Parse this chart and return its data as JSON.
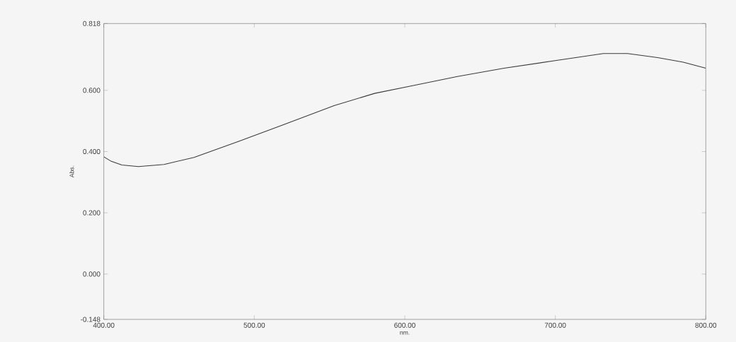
{
  "chart_data": {
    "type": "line",
    "xlabel": "nm.",
    "ylabel": "Abs.",
    "x": [
      400,
      405,
      412,
      423,
      440,
      460,
      490,
      520,
      553,
      580,
      604,
      635,
      666,
      700,
      732,
      748,
      768,
      785,
      800
    ],
    "values": [
      0.383,
      0.368,
      0.356,
      0.351,
      0.358,
      0.381,
      0.434,
      0.489,
      0.55,
      0.59,
      0.614,
      0.645,
      0.672,
      0.697,
      0.72,
      0.72,
      0.707,
      0.692,
      0.672
    ],
    "color": "#3a3a3a",
    "xlim": [
      400,
      800
    ],
    "ylim": [
      -0.148,
      0.818
    ],
    "xticks": [
      {
        "value": 400,
        "label": "400.00"
      },
      {
        "value": 500,
        "label": "500.00"
      },
      {
        "value": 600,
        "label": "600.00"
      },
      {
        "value": 700,
        "label": "700.00"
      },
      {
        "value": 800,
        "label": "800.00"
      }
    ],
    "yticks": [
      {
        "value": -0.148,
        "label": "-0.148"
      },
      {
        "value": 0,
        "label": "0.000"
      },
      {
        "value": 0.2,
        "label": "0.200"
      },
      {
        "value": 0.4,
        "label": "0.400"
      },
      {
        "value": 0.6,
        "label": "0.600"
      },
      {
        "value": 0.818,
        "label": "0.818"
      }
    ],
    "grid": false,
    "marker": "none",
    "line_style": "solid"
  }
}
